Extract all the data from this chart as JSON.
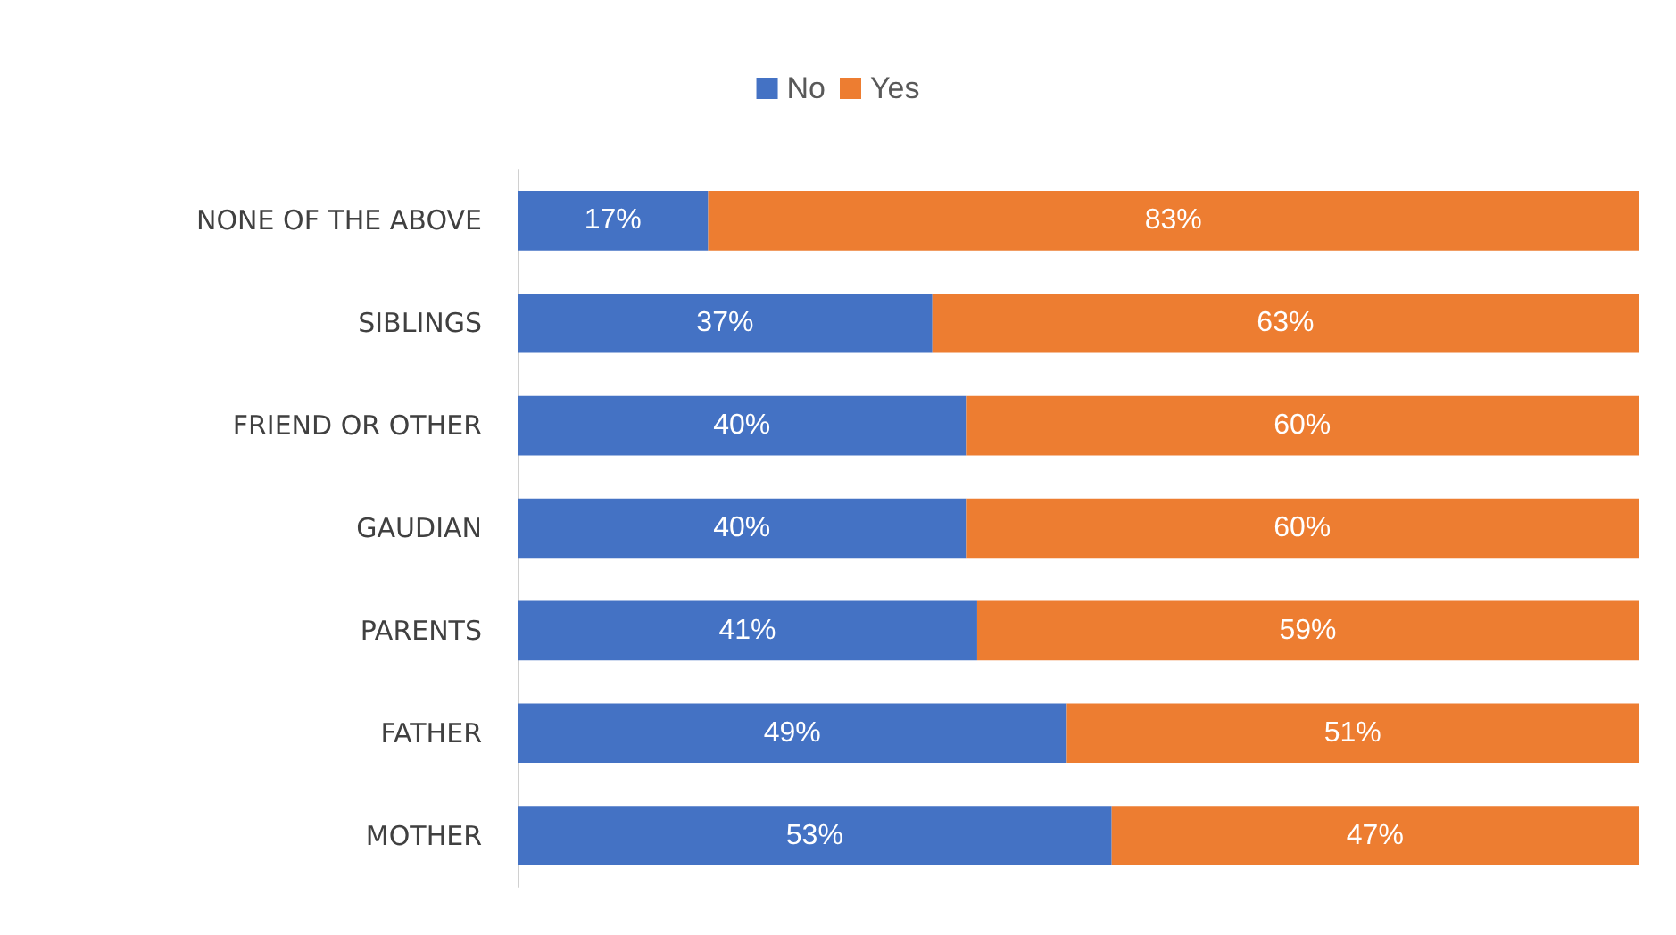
{
  "chart_data": {
    "type": "bar",
    "orientation": "horizontal",
    "stacked": true,
    "categories": [
      "NONE OF THE ABOVE",
      "SIBLINGS",
      "FRIEND OR OTHER",
      "GAUDIAN",
      "PARENTS",
      "FATHER",
      "MOTHER"
    ],
    "series": [
      {
        "name": "No",
        "color": "#4472c4",
        "values": [
          17,
          37,
          40,
          40,
          41,
          49,
          53
        ],
        "value_labels": [
          "17%",
          "37%",
          "40%",
          "40%",
          "41%",
          "49%",
          "53%"
        ]
      },
      {
        "name": "Yes",
        "color": "#ed7d31",
        "values": [
          83,
          63,
          60,
          60,
          59,
          51,
          47
        ],
        "value_labels": [
          "83%",
          "63%",
          "60%",
          "60%",
          "59%",
          "51%",
          "47%"
        ]
      }
    ],
    "legend": "top",
    "grid": false
  }
}
